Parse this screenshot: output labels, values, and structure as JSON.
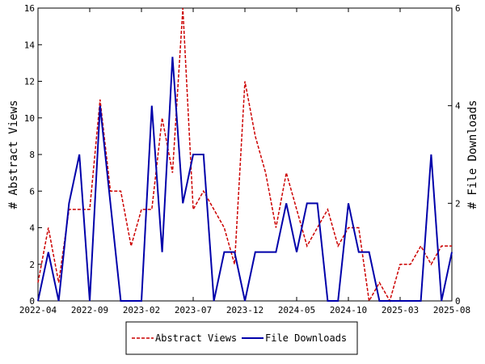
{
  "chart_data": {
    "type": "line",
    "ylabel_left": "# Abstract Views",
    "ylabel_right": "# File Downloads",
    "x_ticks": [
      "2022-04",
      "2022-09",
      "2023-02",
      "2023-07",
      "2023-12",
      "2024-05",
      "2024-10",
      "2025-03",
      "2025-08"
    ],
    "x_domain": [
      0,
      40
    ],
    "y_left_range": [
      0,
      16
    ],
    "y_right_range": [
      0,
      6
    ],
    "y_left_ticks": [
      "0",
      "2",
      "4",
      "6",
      "8",
      "10",
      "12",
      "14",
      "16"
    ],
    "y_right_ticks": [
      "0",
      "2",
      "4",
      "6"
    ],
    "grid": false,
    "legend_position": "bottom",
    "series": [
      {
        "name": "Abstract Views",
        "color": "#cc0000",
        "axis": "left",
        "values": [
          1,
          4,
          1,
          5,
          5,
          5,
          11,
          6,
          6,
          3,
          5,
          5,
          10,
          7,
          16,
          5,
          6,
          5,
          4,
          2,
          12,
          9,
          7,
          4,
          7,
          5,
          3,
          4,
          5,
          3,
          4,
          4,
          0,
          1,
          0,
          2,
          2,
          3,
          2,
          3,
          3
        ]
      },
      {
        "name": "File Downloads",
        "color": "#0000aa",
        "axis": "right",
        "values": [
          0,
          1,
          0,
          2,
          3,
          0,
          4,
          2,
          0,
          0,
          0,
          4,
          1,
          5,
          2,
          3,
          3,
          0,
          1,
          1,
          0,
          1,
          1,
          1,
          2,
          1,
          2,
          2,
          0,
          0,
          2,
          1,
          1,
          0,
          0,
          0,
          0,
          0,
          3,
          0,
          1
        ]
      }
    ]
  }
}
